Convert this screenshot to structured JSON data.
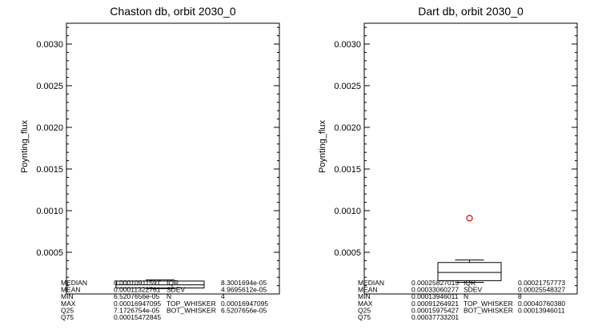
{
  "chart_data": [
    {
      "type": "box",
      "title": "Chaston db, orbit 2030_0",
      "ylabel": "Poynting_flux",
      "ylim": [
        0.0,
        0.00325
      ],
      "yticks": [
        "0.0005",
        "0.0010",
        "0.0015",
        "0.0020",
        "0.0025",
        "0.0030"
      ],
      "box": {
        "q25": 7.1726754e-05,
        "median": 0.00010911591,
        "q75": 0.00015472845,
        "whisker_low": 6.5207656e-05,
        "whisker_high": 0.00016947095
      },
      "outliers": [],
      "stats": [
        [
          "MEDIAN",
          "0.00010911591",
          "IQR",
          "8.3001694e-05"
        ],
        [
          "MEAN",
          "0.00011322761",
          "SDEV",
          "4.9695612e-05"
        ],
        [
          "MIN",
          "6.5207656e-05",
          "N",
          "4"
        ],
        [
          "MAX",
          "0.00016947095",
          "TOP_WHISKER",
          "0.00016947095"
        ],
        [
          "Q25",
          "7.1726754e-05",
          "BOT_WHISKER",
          "6.5207656e-05"
        ],
        [
          "Q75",
          "0.00015472845",
          "",
          ""
        ]
      ]
    },
    {
      "type": "box",
      "title": "Dart db, orbit 2030_0",
      "ylabel": "Poynting_flux",
      "ylim": [
        0.0,
        0.00325
      ],
      "yticks": [
        "0.0005",
        "0.0010",
        "0.0015",
        "0.0020",
        "0.0025",
        "0.0030"
      ],
      "box": {
        "q25": 0.00015975427,
        "median": 0.00025827013,
        "q75": 0.00037733201,
        "whisker_low": 0.00013946011,
        "whisker_high": 0.0004076038
      },
      "outliers": [
        0.00091
      ],
      "stats": [
        [
          "MEDIAN",
          "0.00025827013",
          "IQR",
          "0.00021757773"
        ],
        [
          "MEAN",
          "0.00033060277",
          "SDEV",
          "0.00025548327"
        ],
        [
          "MIN",
          "0.00013946011",
          "N",
          "8"
        ],
        [
          "MAX",
          "0.00091264921",
          "TOP_WHISKER",
          "0.00040760380"
        ],
        [
          "Q25",
          "0.00015975427",
          "BOT_WHISKER",
          "0.00013946011"
        ],
        [
          "Q75",
          "0.00037733201",
          "",
          ""
        ]
      ]
    }
  ]
}
